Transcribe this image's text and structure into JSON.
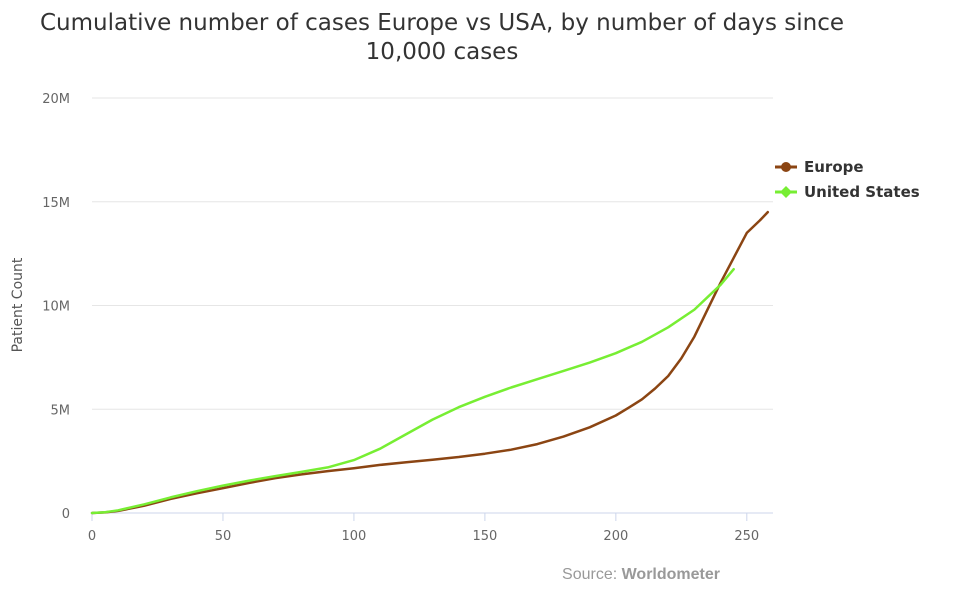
{
  "chart_data": {
    "type": "line",
    "title_line1": "Cumulative number of cases Europe vs USA, by number of days since",
    "title_line2": "10,000 cases",
    "ylabel": "Patient Count",
    "xlim": [
      0,
      260
    ],
    "ylim": [
      0,
      20000000
    ],
    "x_ticks": [
      "0",
      "50",
      "100",
      "150",
      "200",
      "250"
    ],
    "y_ticks": [
      "0",
      "5M",
      "10M",
      "15M",
      "20M"
    ],
    "grid": true,
    "legend_position": "right",
    "series": [
      {
        "name": "Europe",
        "color": "#8B4513",
        "x": [
          0,
          5,
          10,
          20,
          30,
          40,
          50,
          60,
          70,
          80,
          90,
          100,
          110,
          120,
          130,
          140,
          150,
          160,
          170,
          180,
          190,
          200,
          205,
          210,
          215,
          220,
          225,
          230,
          235,
          240,
          245,
          250,
          255,
          258
        ],
        "values": [
          0,
          30000,
          100000,
          350000,
          680000,
          950000,
          1200000,
          1450000,
          1680000,
          1860000,
          2020000,
          2160000,
          2320000,
          2450000,
          2570000,
          2700000,
          2860000,
          3050000,
          3320000,
          3680000,
          4130000,
          4700000,
          5080000,
          5480000,
          6000000,
          6600000,
          7450000,
          8500000,
          9800000,
          11100000,
          12300000,
          13500000,
          14100000,
          14500000
        ]
      },
      {
        "name": "United States",
        "color": "#77EE33",
        "x": [
          0,
          5,
          10,
          20,
          30,
          40,
          50,
          60,
          70,
          80,
          90,
          100,
          110,
          120,
          130,
          140,
          150,
          160,
          170,
          180,
          190,
          200,
          210,
          220,
          230,
          235,
          240,
          245
        ],
        "values": [
          0,
          40000,
          130000,
          420000,
          750000,
          1050000,
          1320000,
          1560000,
          1780000,
          1980000,
          2200000,
          2550000,
          3100000,
          3800000,
          4500000,
          5100000,
          5600000,
          6050000,
          6450000,
          6850000,
          7250000,
          7700000,
          8250000,
          8950000,
          9800000,
          10400000,
          11000000,
          11750000
        ]
      }
    ]
  },
  "credits": {
    "prefix": "Source: ",
    "name": "Worldometer"
  }
}
